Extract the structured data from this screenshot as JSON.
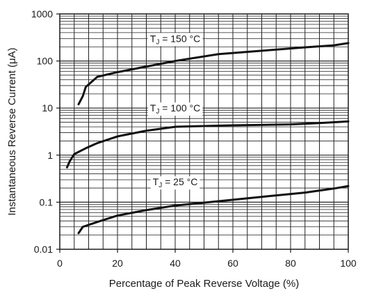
{
  "chart_data": {
    "type": "line",
    "xlabel": "Percentage of Peak Reverse Voltage (%)",
    "ylabel": "Instantaneous Reverse Current (μA)",
    "xlim": [
      0,
      100
    ],
    "ylim": [
      0.01,
      1000
    ],
    "yscale": "log",
    "grid": "on",
    "x_ticks": [
      {
        "value": 0,
        "label": "0"
      },
      {
        "value": 20,
        "label": "20"
      },
      {
        "value": 40,
        "label": "40"
      },
      {
        "value": 60,
        "label": "60"
      },
      {
        "value": 80,
        "label": "80"
      },
      {
        "value": 100,
        "label": "100"
      }
    ],
    "y_ticks": [
      {
        "value": 0.01,
        "label": "0.01"
      },
      {
        "value": 0.1,
        "label": "0.1"
      },
      {
        "value": 1,
        "label": "1"
      },
      {
        "value": 10,
        "label": "10"
      },
      {
        "value": 100,
        "label": "100"
      },
      {
        "value": 1000,
        "label": "1000"
      }
    ],
    "series": [
      {
        "label_main": "T",
        "label_sub": "J",
        "label_rest": " = 150 °C",
        "label_at": {
          "x": 40,
          "y": 300
        },
        "points": [
          [
            6.5,
            12
          ],
          [
            8,
            18
          ],
          [
            9,
            28
          ],
          [
            13,
            46
          ],
          [
            20,
            58
          ],
          [
            30,
            76
          ],
          [
            40,
            100
          ],
          [
            55,
            140
          ],
          [
            70,
            165
          ],
          [
            85,
            195
          ],
          [
            95,
            215
          ],
          [
            100,
            240
          ]
        ]
      },
      {
        "label_main": "T",
        "label_sub": "J",
        "label_rest": " = 100 °C",
        "label_at": {
          "x": 40,
          "y": 10
        },
        "points": [
          [
            2.5,
            0.55
          ],
          [
            3.5,
            0.75
          ],
          [
            5,
            1.05
          ],
          [
            9,
            1.4
          ],
          [
            13,
            1.8
          ],
          [
            20,
            2.5
          ],
          [
            30,
            3.3
          ],
          [
            40,
            4.0
          ],
          [
            60,
            4.3
          ],
          [
            80,
            4.5
          ],
          [
            90,
            4.8
          ],
          [
            100,
            5.2
          ]
        ]
      },
      {
        "label_main": "T",
        "label_sub": "J",
        "label_rest": " = 25 °C",
        "label_at": {
          "x": 40,
          "y": 0.27
        },
        "points": [
          [
            6.5,
            0.022
          ],
          [
            8,
            0.03
          ],
          [
            13,
            0.038
          ],
          [
            20,
            0.052
          ],
          [
            30,
            0.068
          ],
          [
            40,
            0.085
          ],
          [
            55,
            0.105
          ],
          [
            70,
            0.13
          ],
          [
            85,
            0.16
          ],
          [
            95,
            0.195
          ],
          [
            100,
            0.22
          ]
        ]
      }
    ]
  }
}
